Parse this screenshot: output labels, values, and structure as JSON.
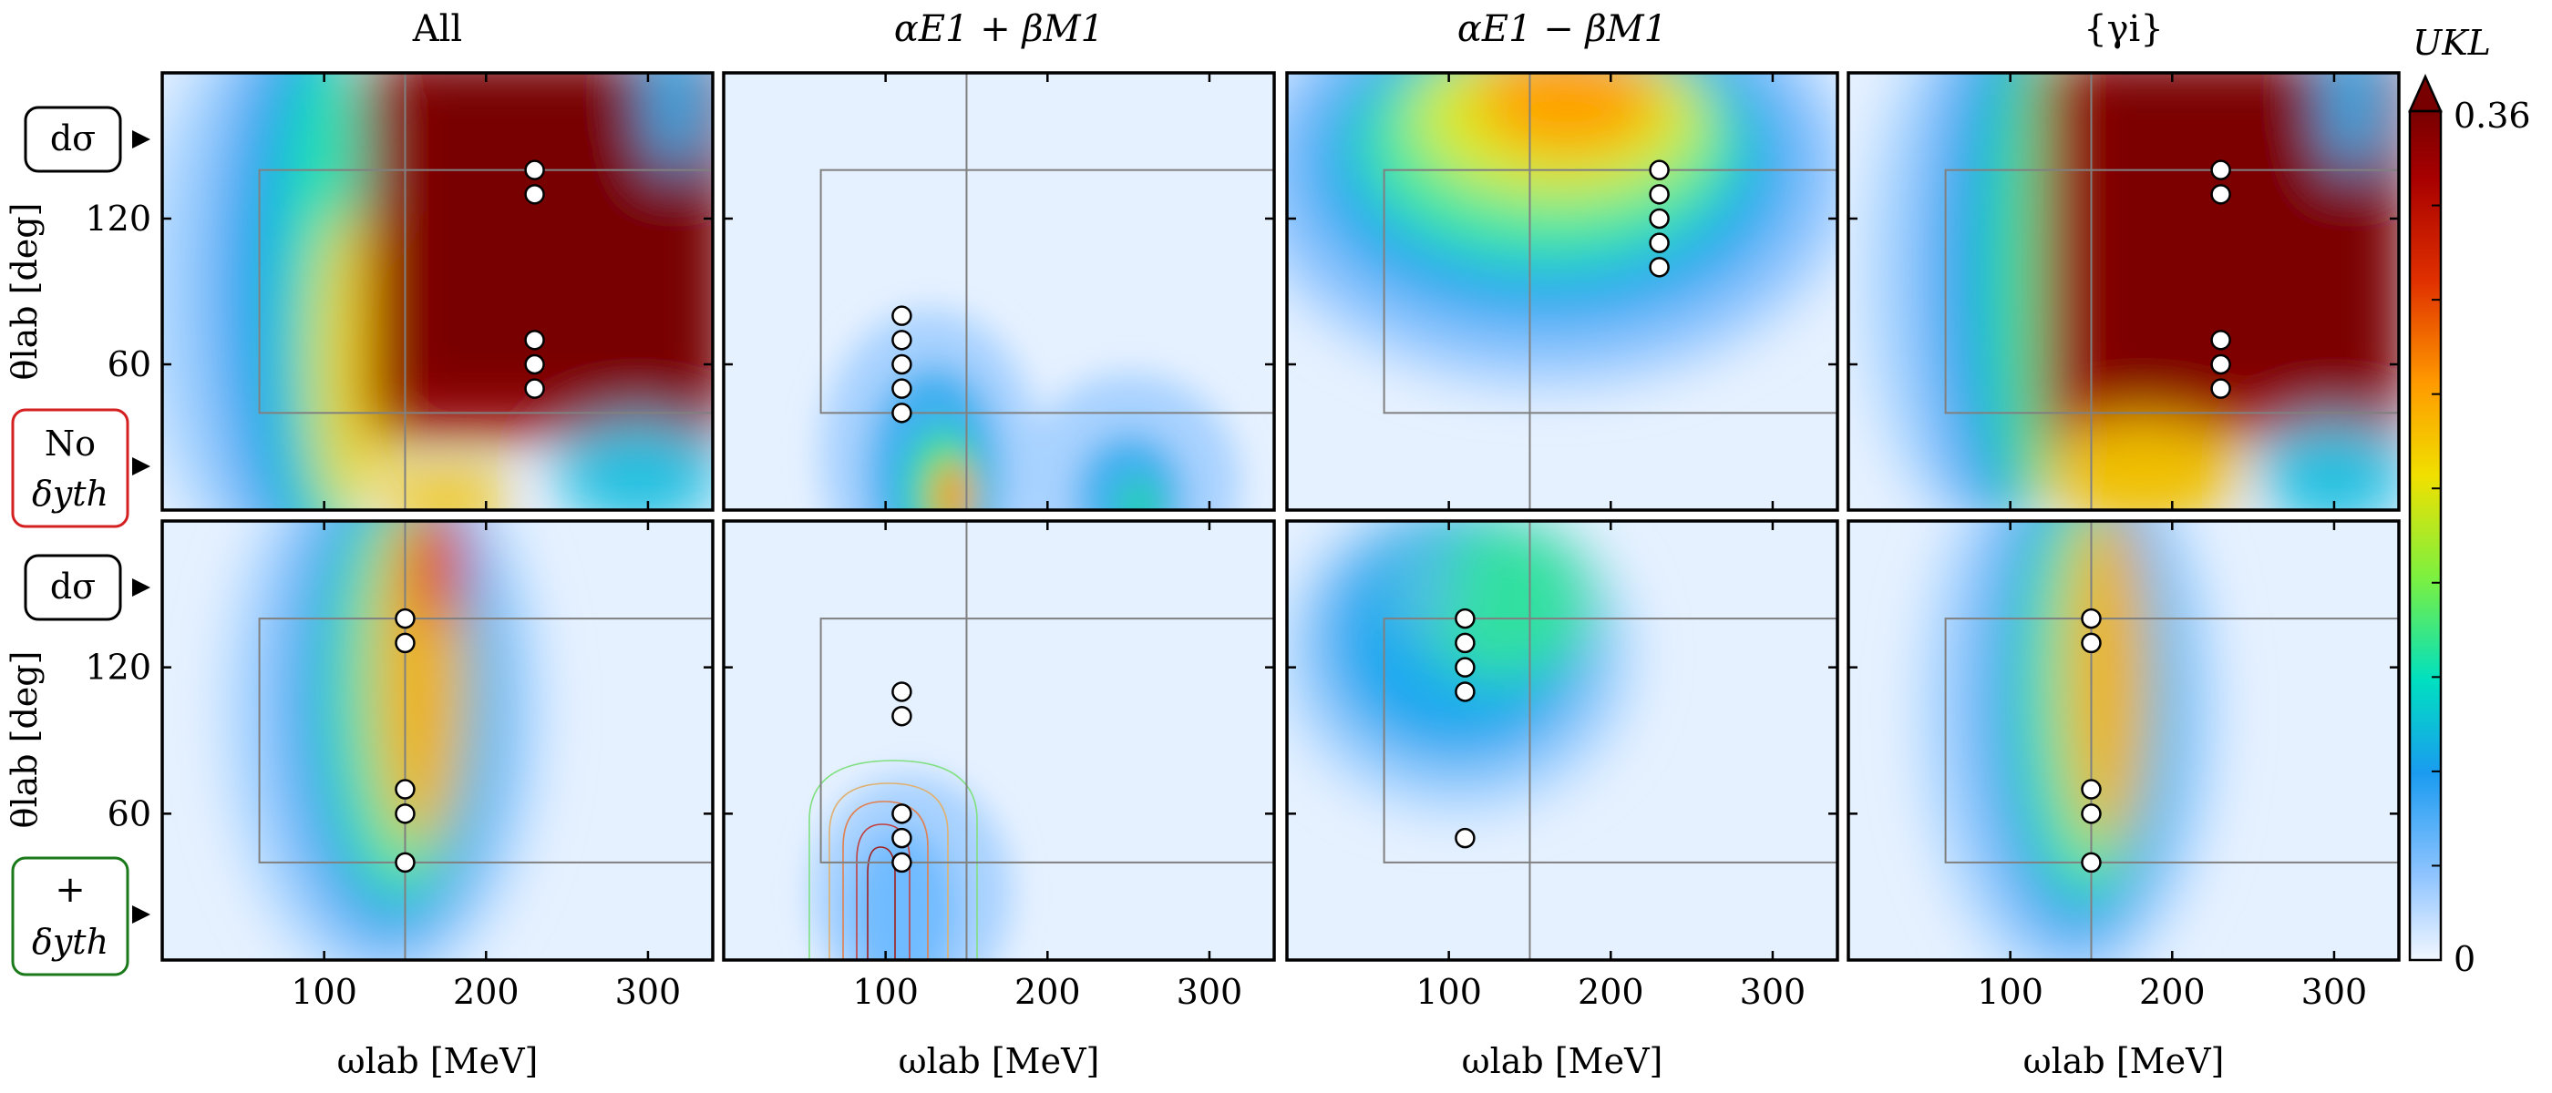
{
  "chart_data": {
    "type": "heatmap",
    "column_titles": [
      "All",
      "αE1 + βM1",
      "αE1 − βM1",
      "{γi}"
    ],
    "xlabel": "ωlab [MeV]",
    "ylabel": "θlab [deg]",
    "xlim": [
      0,
      340
    ],
    "ylim": [
      0,
      180
    ],
    "xticks": [
      "100",
      "200",
      "300"
    ],
    "yticks": [
      "60",
      "120"
    ],
    "colorbar": {
      "label": "UKL",
      "min_label": "0",
      "max_label": "0.36",
      "vmin": 0,
      "vmax": 0.36
    },
    "row_labels": [
      {
        "top": "dσ",
        "bottom_line1": "No",
        "bottom_line2": "δyth",
        "bottom_color": "#d42020"
      },
      {
        "top": "dσ",
        "bottom_line1": "+",
        "bottom_line2": "δyth",
        "bottom_color": "#1a7a1a"
      }
    ],
    "reference_lines": {
      "omega": 150,
      "box_omega": [
        60,
        340
      ],
      "box_theta": [
        40,
        140
      ]
    },
    "panels": [
      {
        "row": 0,
        "col": 0,
        "name": "All, no δyth",
        "points": [
          [
            230,
            140
          ],
          [
            230,
            130
          ],
          [
            230,
            70
          ],
          [
            230,
            60
          ],
          [
            230,
            50
          ]
        ]
      },
      {
        "row": 0,
        "col": 1,
        "name": "αE1+βM1, no δyth",
        "points": [
          [
            110,
            80
          ],
          [
            110,
            70
          ],
          [
            110,
            60
          ],
          [
            110,
            50
          ],
          [
            110,
            40
          ]
        ]
      },
      {
        "row": 0,
        "col": 2,
        "name": "αE1−βM1, no δyth",
        "points": [
          [
            230,
            140
          ],
          [
            230,
            130
          ],
          [
            230,
            120
          ],
          [
            230,
            110
          ],
          [
            230,
            100
          ]
        ]
      },
      {
        "row": 0,
        "col": 3,
        "name": "{γi}, no δyth",
        "points": [
          [
            230,
            140
          ],
          [
            230,
            130
          ],
          [
            230,
            70
          ],
          [
            230,
            60
          ],
          [
            230,
            50
          ]
        ]
      },
      {
        "row": 1,
        "col": 0,
        "name": "All, + δyth",
        "points": [
          [
            150,
            140
          ],
          [
            150,
            130
          ],
          [
            150,
            70
          ],
          [
            150,
            60
          ],
          [
            150,
            40
          ]
        ]
      },
      {
        "row": 1,
        "col": 1,
        "name": "αE1+βM1, + δyth",
        "points": [
          [
            110,
            110
          ],
          [
            110,
            100
          ],
          [
            110,
            60
          ],
          [
            110,
            50
          ],
          [
            110,
            40
          ]
        ]
      },
      {
        "row": 1,
        "col": 2,
        "name": "αE1−βM1, + δyth",
        "points": [
          [
            110,
            140
          ],
          [
            110,
            130
          ],
          [
            110,
            120
          ],
          [
            110,
            110
          ],
          [
            110,
            50
          ]
        ]
      },
      {
        "row": 1,
        "col": 3,
        "name": "{γi}, + δyth",
        "points": [
          [
            150,
            140
          ],
          [
            150,
            130
          ],
          [
            150,
            70
          ],
          [
            150,
            60
          ],
          [
            150,
            40
          ]
        ]
      }
    ]
  }
}
